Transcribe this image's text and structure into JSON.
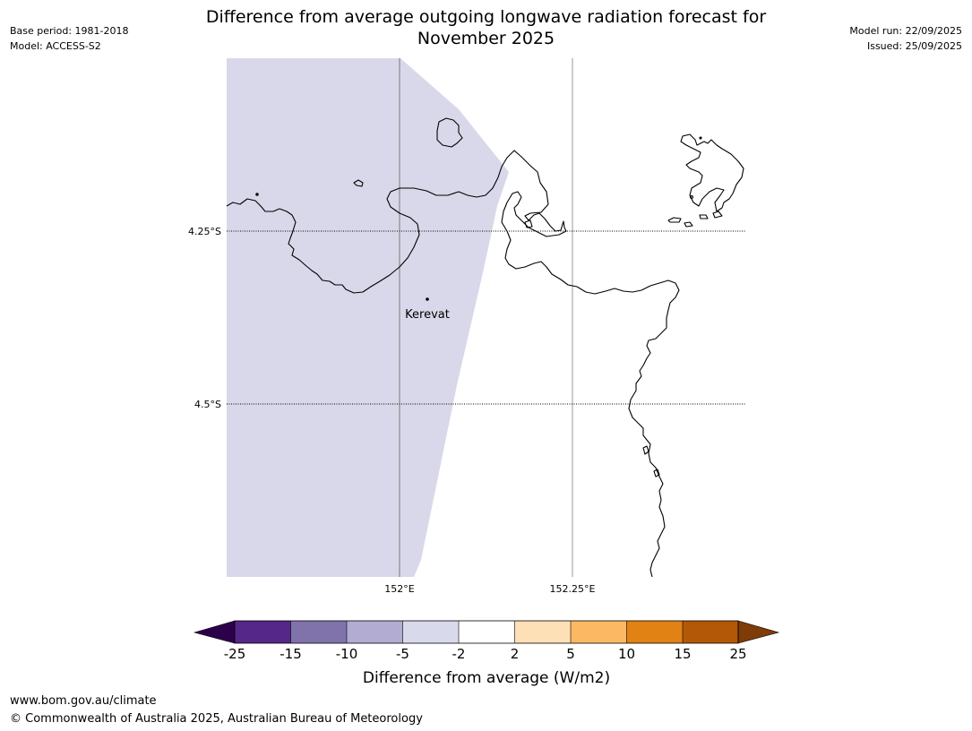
{
  "header": {
    "base_period": "Base period: 1981-2018",
    "model": "Model: ACCESS-S2",
    "title_line1": "Difference from average outgoing longwave radiation forecast for",
    "title_line2": "November 2025",
    "model_run": "Model run: 22/09/2025",
    "issued": "Issued: 25/09/2025"
  },
  "map": {
    "lat_labels": [
      "4.25°S",
      "4.5°S"
    ],
    "lon_labels": [
      "152°E",
      "152.25°E"
    ],
    "place": {
      "name": "Kerevat"
    },
    "shaded_category": "-5 to -2",
    "shaded_color": "#d8d8ea",
    "coastline_color": "#000000"
  },
  "colorbar": {
    "tick_labels": [
      "-25",
      "-15",
      "-10",
      "-5",
      "-2",
      "2",
      "5",
      "10",
      "15",
      "25"
    ],
    "colors": [
      "#2d004b",
      "#542788",
      "#8073ac",
      "#b2abd2",
      "#d8daeb",
      "#ffffff",
      "#fee0b6",
      "#fdb863",
      "#e08214",
      "#b35806",
      "#7f3b08"
    ],
    "label": "Difference from average (W/m2)"
  },
  "footer": {
    "url": "www.bom.gov.au/climate",
    "copyright": "© Commonwealth of Australia 2025, Australian Bureau of Meteorology"
  }
}
